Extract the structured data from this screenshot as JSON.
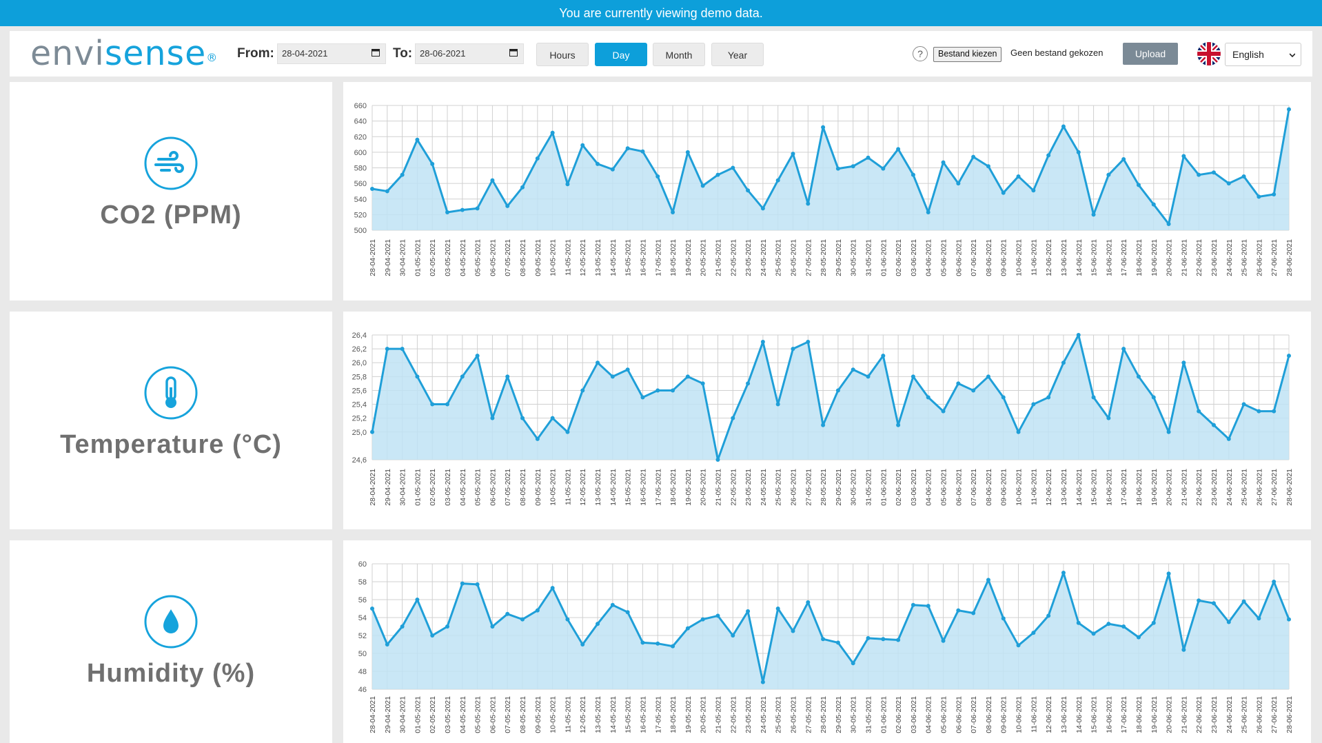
{
  "banner": {
    "text": "You are currently viewing demo data."
  },
  "logo": {
    "part1": "envi",
    "part2": "sense",
    "mark": "®"
  },
  "toolbar": {
    "from_label": "From:",
    "from_value": "28-04-2021",
    "to_label": "To:",
    "to_value": "28-06-2021",
    "calendar_icon": "calendar-icon",
    "ranges": [
      "Hours",
      "Day",
      "Month",
      "Year"
    ],
    "active_range": "Day",
    "help_label": "?",
    "file_button": "Bestand kiezen",
    "file_status": "Geen bestand gekozen",
    "upload_label": "Upload",
    "flag_icon": "uk-flag-icon",
    "language": "English"
  },
  "colors": {
    "accent": "#0d9fda",
    "line": "#1f9fd8",
    "fill": "#bfe3f5",
    "grid": "#d0d0d0"
  },
  "sensors": [
    {
      "title": "CO2 (PPM)",
      "icon": "wind-icon"
    },
    {
      "title": "Temperature (°C)",
      "icon": "thermometer-icon"
    },
    {
      "title": "Humidity (%)",
      "icon": "droplet-icon"
    }
  ],
  "chart_data": [
    {
      "type": "area",
      "name": "co2",
      "ylim": [
        500,
        660
      ],
      "yticks": [
        "500",
        "520",
        "540",
        "560",
        "580",
        "600",
        "620",
        "640",
        "660"
      ],
      "values": [
        553,
        550,
        571,
        616,
        585,
        523,
        526,
        528,
        564,
        531,
        555,
        592,
        625,
        559,
        609,
        585,
        578,
        605,
        601,
        569,
        523,
        600,
        557,
        571,
        580,
        551,
        528,
        564,
        598,
        534,
        632,
        579,
        582,
        593,
        579,
        604,
        571,
        523,
        587,
        560,
        594,
        582,
        548,
        569,
        551,
        596,
        633,
        600,
        520,
        571,
        591,
        558,
        533,
        508,
        595,
        571,
        574,
        560,
        569,
        543,
        546,
        655
      ]
    },
    {
      "type": "area",
      "name": "temperature",
      "ylim": [
        24.6,
        26.4
      ],
      "yticks": [
        "24,6",
        "25,0",
        "25,2",
        "25,4",
        "25,6",
        "25,8",
        "26,0",
        "26,2",
        "26,4"
      ],
      "values": [
        25.0,
        26.2,
        26.2,
        25.8,
        25.4,
        25.4,
        25.8,
        26.1,
        25.2,
        25.8,
        25.2,
        24.9,
        25.2,
        25.0,
        25.6,
        26.0,
        25.8,
        25.9,
        25.5,
        25.6,
        25.6,
        25.8,
        25.7,
        24.6,
        25.2,
        25.7,
        26.3,
        25.4,
        26.2,
        26.3,
        25.1,
        25.6,
        25.9,
        25.8,
        26.1,
        25.1,
        25.8,
        25.5,
        25.3,
        25.7,
        25.6,
        25.8,
        25.5,
        25.0,
        25.4,
        25.5,
        26.0,
        26.4,
        25.5,
        25.2,
        26.2,
        25.8,
        25.5,
        25.0,
        26.0,
        25.3,
        25.1,
        24.9,
        25.4,
        25.3,
        25.3,
        26.1
      ]
    },
    {
      "type": "area",
      "name": "humidity",
      "ylim": [
        46,
        60
      ],
      "yticks": [
        "46",
        "48",
        "50",
        "52",
        "54",
        "56",
        "58",
        "60"
      ],
      "values": [
        55,
        51,
        53,
        56,
        52,
        53,
        57.8,
        57.7,
        53,
        54.4,
        53.8,
        54.8,
        57.3,
        53.8,
        51,
        53.3,
        55.4,
        54.6,
        51.2,
        51.1,
        50.8,
        52.8,
        53.8,
        54.2,
        52,
        54.7,
        46.8,
        55,
        52.5,
        55.7,
        51.6,
        51.2,
        48.9,
        51.7,
        51.6,
        51.5,
        55.4,
        55.3,
        51.4,
        54.8,
        54.5,
        58.2,
        53.9,
        50.9,
        52.3,
        54.2,
        59,
        53.4,
        52.2,
        53.3,
        53,
        51.8,
        53.4,
        58.9,
        50.4,
        55.9,
        55.6,
        53.5,
        55.8,
        53.9,
        58,
        53.8
      ]
    }
  ],
  "dates": [
    "28-04-2021",
    "29-04-2021",
    "30-04-2021",
    "01-05-2021",
    "02-05-2021",
    "03-05-2021",
    "04-05-2021",
    "05-05-2021",
    "06-05-2021",
    "07-05-2021",
    "08-05-2021",
    "09-05-2021",
    "10-05-2021",
    "11-05-2021",
    "12-05-2021",
    "13-05-2021",
    "14-05-2021",
    "15-05-2021",
    "16-05-2021",
    "17-05-2021",
    "18-05-2021",
    "19-05-2021",
    "20-05-2021",
    "21-05-2021",
    "22-05-2021",
    "23-05-2021",
    "24-05-2021",
    "25-05-2021",
    "26-05-2021",
    "27-05-2021",
    "28-05-2021",
    "29-05-2021",
    "30-05-2021",
    "31-05-2021",
    "01-06-2021",
    "02-06-2021",
    "03-06-2021",
    "04-06-2021",
    "05-06-2021",
    "06-06-2021",
    "07-06-2021",
    "08-06-2021",
    "09-06-2021",
    "10-06-2021",
    "11-06-2021",
    "12-06-2021",
    "13-06-2021",
    "14-06-2021",
    "15-06-2021",
    "16-06-2021",
    "17-06-2021",
    "18-06-2021",
    "19-06-2021",
    "20-06-2021",
    "21-06-2021",
    "22-06-2021",
    "23-06-2021",
    "24-06-2021",
    "25-06-2021",
    "26-06-2021",
    "27-06-2021",
    "28-06-2021"
  ]
}
